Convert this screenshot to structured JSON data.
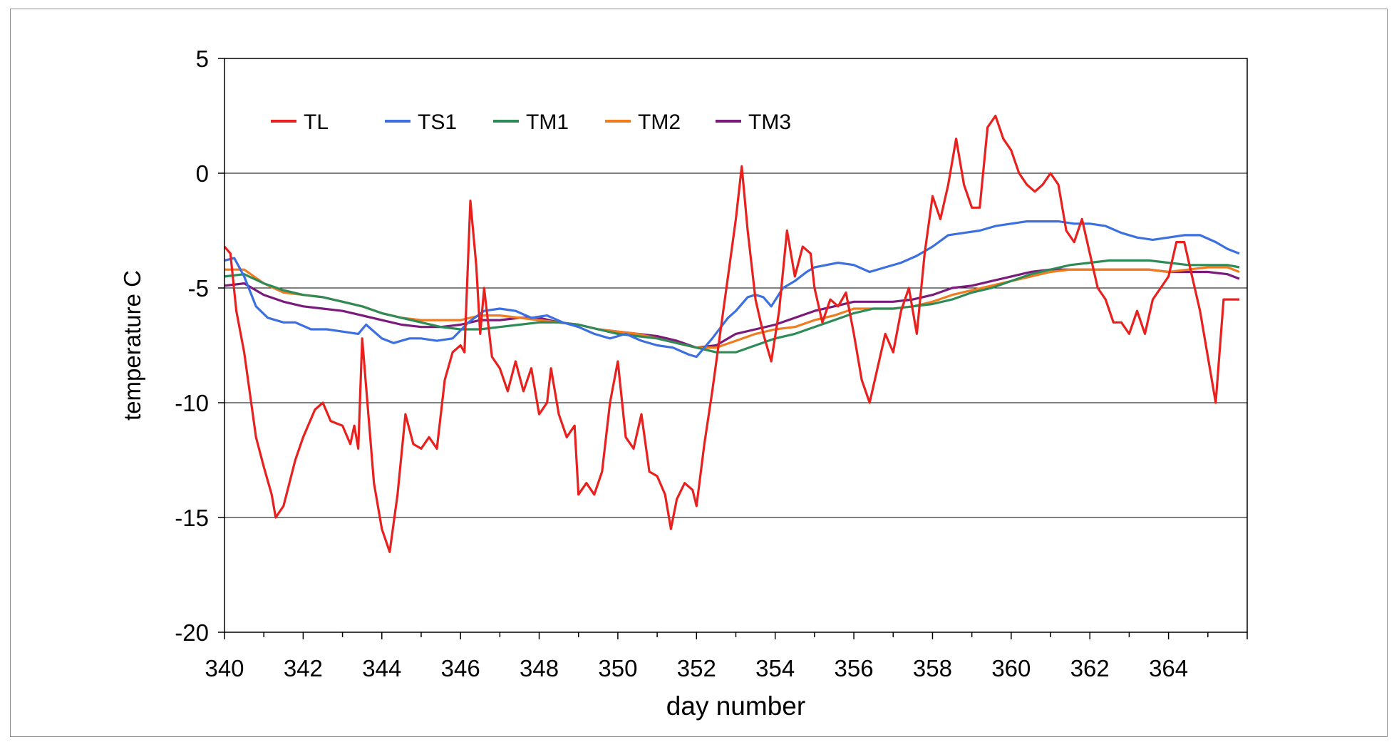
{
  "chart_data": {
    "type": "line",
    "title": "",
    "xlabel": "day number",
    "ylabel": "temperature C",
    "xlim": [
      340,
      366
    ],
    "ylim": [
      -20,
      5
    ],
    "xticks": [
      340,
      342,
      344,
      346,
      348,
      350,
      352,
      354,
      356,
      358,
      360,
      362,
      364
    ],
    "xtick_labels": [
      "340",
      "342",
      "344",
      "346",
      "348",
      "350",
      "352",
      "354",
      "356",
      "358",
      "360",
      "362",
      "364"
    ],
    "yticks": [
      5,
      0,
      -5,
      -10,
      -15,
      -20
    ],
    "ytick_labels": [
      "5",
      "0",
      "-5",
      "-10",
      "-15",
      "-20"
    ],
    "grid": "horizontal major lines",
    "legend_position": "top-left inside plot, horizontal",
    "series": [
      {
        "name": "TL",
        "color": "#e8201e",
        "x": [
          340.0,
          340.15,
          340.3,
          340.5,
          340.8,
          341.0,
          341.2,
          341.3,
          341.5,
          341.8,
          342.0,
          342.3,
          342.5,
          342.7,
          343.0,
          343.2,
          343.3,
          343.4,
          343.5,
          343.8,
          344.0,
          344.2,
          344.4,
          344.6,
          344.8,
          345.0,
          345.2,
          345.4,
          345.6,
          345.8,
          346.0,
          346.1,
          346.25,
          346.4,
          346.5,
          346.6,
          346.8,
          347.0,
          347.2,
          347.4,
          347.6,
          347.8,
          348.0,
          348.2,
          348.3,
          348.5,
          348.7,
          348.9,
          349.0,
          349.2,
          349.4,
          349.6,
          349.8,
          350.0,
          350.2,
          350.4,
          350.6,
          350.8,
          351.0,
          351.2,
          351.35,
          351.5,
          351.7,
          351.9,
          352.0,
          352.2,
          352.4,
          352.6,
          352.8,
          353.0,
          353.15,
          353.3,
          353.5,
          353.7,
          353.9,
          354.1,
          354.3,
          354.5,
          354.7,
          354.9,
          355.0,
          355.2,
          355.4,
          355.6,
          355.8,
          356.0,
          356.2,
          356.4,
          356.6,
          356.8,
          357.0,
          357.2,
          357.4,
          357.6,
          357.8,
          358.0,
          358.2,
          358.4,
          358.6,
          358.8,
          359.0,
          359.2,
          359.4,
          359.6,
          359.8,
          360.0,
          360.2,
          360.4,
          360.6,
          360.8,
          361.0,
          361.2,
          361.4,
          361.6,
          361.8,
          362.0,
          362.2,
          362.4,
          362.6,
          362.8,
          363.0,
          363.2,
          363.4,
          363.6,
          363.8,
          364.0,
          364.2,
          364.4,
          364.6,
          364.8,
          365.0,
          365.2,
          365.4,
          365.6,
          365.8
        ],
        "y": [
          -3.2,
          -3.5,
          -6.0,
          -7.8,
          -11.5,
          -12.8,
          -14.0,
          -15.0,
          -14.5,
          -12.5,
          -11.5,
          -10.3,
          -10.0,
          -10.8,
          -11.0,
          -11.8,
          -11.0,
          -12.0,
          -7.2,
          -13.5,
          -15.5,
          -16.5,
          -14.0,
          -10.5,
          -11.8,
          -12.0,
          -11.5,
          -12.0,
          -9.0,
          -7.8,
          -7.5,
          -7.8,
          -1.2,
          -4.0,
          -7.0,
          -5.0,
          -8.0,
          -8.5,
          -9.5,
          -8.2,
          -9.5,
          -8.5,
          -10.5,
          -10.0,
          -8.5,
          -10.5,
          -11.5,
          -11.0,
          -14.0,
          -13.5,
          -14.0,
          -13.0,
          -10.0,
          -8.2,
          -11.5,
          -12.0,
          -10.5,
          -13.0,
          -13.2,
          -14.0,
          -15.5,
          -14.2,
          -13.5,
          -13.8,
          -14.5,
          -11.8,
          -9.5,
          -7.0,
          -4.5,
          -2.0,
          0.3,
          -2.5,
          -5.5,
          -7.0,
          -8.2,
          -6.0,
          -2.5,
          -4.5,
          -3.2,
          -3.5,
          -5.0,
          -6.5,
          -5.5,
          -5.8,
          -5.2,
          -7.0,
          -9.0,
          -10.0,
          -8.5,
          -7.0,
          -7.8,
          -6.0,
          -5.0,
          -7.0,
          -3.5,
          -1.0,
          -2.0,
          -0.5,
          1.5,
          -0.5,
          -1.5,
          -1.5,
          2.0,
          2.5,
          1.5,
          1.0,
          0.0,
          -0.5,
          -0.8,
          -0.5,
          0.0,
          -0.5,
          -2.5,
          -3.0,
          -2.0,
          -3.5,
          -5.0,
          -5.5,
          -6.5,
          -6.5,
          -7.0,
          -6.0,
          -7.0,
          -5.5,
          -5.0,
          -4.5,
          -3.0,
          -3.0,
          -4.5,
          -6.0,
          -8.0,
          -10.0,
          -5.5,
          -5.5,
          -5.5
        ],
        "note_markers": "none"
      },
      {
        "name": "TS1",
        "color": "#3c6fe0",
        "x": [
          340.0,
          340.25,
          340.5,
          340.8,
          341.1,
          341.5,
          341.8,
          342.2,
          342.6,
          343.0,
          343.4,
          343.6,
          344.0,
          344.3,
          344.7,
          345.0,
          345.4,
          345.8,
          346.2,
          346.6,
          347.0,
          347.4,
          347.8,
          348.2,
          348.6,
          349.0,
          349.4,
          349.8,
          350.2,
          350.6,
          351.0,
          351.4,
          351.8,
          352.0,
          352.4,
          352.8,
          353.0,
          353.3,
          353.5,
          353.7,
          353.9,
          354.2,
          354.5,
          354.8,
          355.0,
          355.3,
          355.6,
          356.0,
          356.4,
          356.8,
          357.2,
          357.6,
          358.0,
          358.4,
          358.8,
          359.2,
          359.6,
          360.0,
          360.4,
          360.8,
          361.2,
          361.6,
          362.0,
          362.4,
          362.8,
          363.2,
          363.6,
          364.0,
          364.4,
          364.8,
          365.2,
          365.5,
          365.8
        ],
        "y": [
          -3.8,
          -3.7,
          -4.5,
          -5.8,
          -6.3,
          -6.5,
          -6.5,
          -6.8,
          -6.8,
          -6.9,
          -7.0,
          -6.6,
          -7.2,
          -7.4,
          -7.2,
          -7.2,
          -7.3,
          -7.2,
          -6.5,
          -6.0,
          -5.9,
          -6.0,
          -6.3,
          -6.2,
          -6.5,
          -6.7,
          -7.0,
          -7.2,
          -7.0,
          -7.3,
          -7.5,
          -7.6,
          -7.9,
          -8.0,
          -7.2,
          -6.3,
          -6.0,
          -5.4,
          -5.3,
          -5.4,
          -5.8,
          -5.0,
          -4.7,
          -4.3,
          -4.1,
          -4.0,
          -3.9,
          -4.0,
          -4.3,
          -4.1,
          -3.9,
          -3.6,
          -3.2,
          -2.7,
          -2.6,
          -2.5,
          -2.3,
          -2.2,
          -2.1,
          -2.1,
          -2.1,
          -2.2,
          -2.2,
          -2.3,
          -2.6,
          -2.8,
          -2.9,
          -2.8,
          -2.7,
          -2.7,
          -3.0,
          -3.3,
          -3.5
        ]
      },
      {
        "name": "TM1",
        "color": "#2e8b57",
        "x": [
          340.0,
          340.5,
          341.0,
          341.5,
          342.0,
          342.5,
          343.0,
          343.5,
          344.0,
          344.5,
          345.0,
          345.5,
          346.0,
          346.5,
          347.0,
          347.5,
          348.0,
          348.5,
          349.0,
          349.5,
          350.0,
          350.5,
          351.0,
          351.5,
          352.0,
          352.5,
          353.0,
          353.5,
          354.0,
          354.5,
          355.0,
          355.5,
          356.0,
          356.5,
          357.0,
          357.5,
          358.0,
          358.5,
          359.0,
          359.5,
          360.0,
          360.5,
          361.0,
          361.5,
          362.0,
          362.5,
          363.0,
          363.5,
          364.0,
          364.5,
          365.0,
          365.5,
          365.8
        ],
        "y": [
          -4.5,
          -4.4,
          -4.8,
          -5.1,
          -5.3,
          -5.4,
          -5.6,
          -5.8,
          -6.1,
          -6.3,
          -6.5,
          -6.7,
          -6.8,
          -6.8,
          -6.7,
          -6.6,
          -6.5,
          -6.5,
          -6.6,
          -6.8,
          -7.0,
          -7.1,
          -7.2,
          -7.4,
          -7.6,
          -7.8,
          -7.8,
          -7.5,
          -7.2,
          -7.0,
          -6.7,
          -6.4,
          -6.1,
          -5.9,
          -5.9,
          -5.8,
          -5.7,
          -5.5,
          -5.2,
          -5.0,
          -4.7,
          -4.4,
          -4.2,
          -4.0,
          -3.9,
          -3.8,
          -3.8,
          -3.8,
          -3.9,
          -4.0,
          -4.0,
          -4.0,
          -4.1
        ]
      },
      {
        "name": "TM2",
        "color": "#f07c1e",
        "x": [
          340.0,
          340.5,
          341.0,
          341.5,
          342.0,
          342.5,
          343.0,
          343.5,
          344.0,
          344.5,
          345.0,
          345.5,
          346.0,
          346.5,
          347.0,
          347.5,
          348.0,
          348.5,
          349.0,
          349.5,
          350.0,
          350.5,
          351.0,
          351.5,
          352.0,
          352.5,
          353.0,
          353.5,
          354.0,
          354.5,
          355.0,
          355.5,
          356.0,
          356.5,
          357.0,
          357.5,
          358.0,
          358.5,
          359.0,
          359.5,
          360.0,
          360.5,
          361.0,
          361.5,
          362.0,
          362.5,
          363.0,
          363.5,
          364.0,
          364.5,
          365.0,
          365.5,
          365.8
        ],
        "y": [
          -4.2,
          -4.2,
          -4.8,
          -5.2,
          -5.3,
          -5.4,
          -5.6,
          -5.8,
          -6.1,
          -6.3,
          -6.4,
          -6.4,
          -6.4,
          -6.2,
          -6.2,
          -6.3,
          -6.4,
          -6.5,
          -6.6,
          -6.8,
          -6.9,
          -7.0,
          -7.2,
          -7.4,
          -7.6,
          -7.6,
          -7.3,
          -7.0,
          -6.8,
          -6.7,
          -6.4,
          -6.2,
          -5.9,
          -5.9,
          -5.9,
          -5.8,
          -5.6,
          -5.3,
          -5.1,
          -4.9,
          -4.7,
          -4.5,
          -4.3,
          -4.2,
          -4.2,
          -4.2,
          -4.2,
          -4.2,
          -4.3,
          -4.2,
          -4.1,
          -4.1,
          -4.3
        ]
      },
      {
        "name": "TM3",
        "color": "#7a1a7a",
        "x": [
          340.0,
          340.5,
          341.0,
          341.5,
          342.0,
          342.5,
          343.0,
          343.5,
          344.0,
          344.5,
          345.0,
          345.5,
          346.0,
          346.5,
          347.0,
          347.5,
          348.0,
          348.5,
          349.0,
          349.5,
          350.0,
          350.5,
          351.0,
          351.5,
          352.0,
          352.5,
          353.0,
          353.5,
          354.0,
          354.5,
          355.0,
          355.5,
          356.0,
          356.5,
          357.0,
          357.5,
          358.0,
          358.5,
          359.0,
          359.5,
          360.0,
          360.5,
          361.0,
          361.5,
          362.0,
          362.5,
          363.0,
          363.5,
          364.0,
          364.5,
          365.0,
          365.5,
          365.8
        ],
        "y": [
          -4.9,
          -4.8,
          -5.3,
          -5.6,
          -5.8,
          -5.9,
          -6.0,
          -6.2,
          -6.4,
          -6.6,
          -6.7,
          -6.7,
          -6.6,
          -6.4,
          -6.4,
          -6.3,
          -6.3,
          -6.5,
          -6.6,
          -6.8,
          -6.9,
          -7.0,
          -7.1,
          -7.3,
          -7.6,
          -7.5,
          -7.0,
          -6.8,
          -6.6,
          -6.3,
          -6.0,
          -5.8,
          -5.6,
          -5.6,
          -5.6,
          -5.5,
          -5.3,
          -5.0,
          -4.9,
          -4.7,
          -4.5,
          -4.3,
          -4.2,
          -4.2,
          -4.2,
          -4.2,
          -4.2,
          -4.2,
          -4.3,
          -4.3,
          -4.3,
          -4.4,
          -4.6
        ]
      }
    ]
  }
}
